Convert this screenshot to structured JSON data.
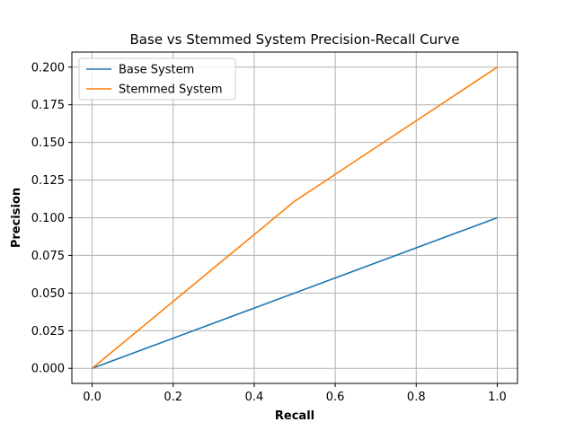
{
  "chart_data": {
    "type": "line",
    "title": "Base vs Stemmed System Precision-Recall Curve",
    "xlabel": "Recall",
    "ylabel": "Precision",
    "xlim": [
      -0.05,
      1.05
    ],
    "ylim": [
      -0.01,
      0.21
    ],
    "x_ticks": [
      0.0,
      0.2,
      0.4,
      0.6,
      0.8,
      1.0
    ],
    "x_tick_labels": [
      "0.0",
      "0.2",
      "0.4",
      "0.6",
      "0.8",
      "1.0"
    ],
    "y_ticks": [
      0.0,
      0.025,
      0.05,
      0.075,
      0.1,
      0.125,
      0.15,
      0.175,
      0.2
    ],
    "y_tick_labels": [
      "0.000",
      "0.025",
      "0.050",
      "0.075",
      "0.100",
      "0.125",
      "0.150",
      "0.175",
      "0.200"
    ],
    "grid": true,
    "legend_position": "top-left",
    "series": [
      {
        "name": "Base System",
        "color": "#1f77b4",
        "x": [
          0.0,
          0.5,
          1.0
        ],
        "y": [
          0.0,
          0.05,
          0.1
        ]
      },
      {
        "name": "Stemmed System",
        "color": "#ff7f0e",
        "x": [
          0.0,
          0.5,
          1.0
        ],
        "y": [
          0.0,
          0.111,
          0.2
        ]
      }
    ]
  }
}
